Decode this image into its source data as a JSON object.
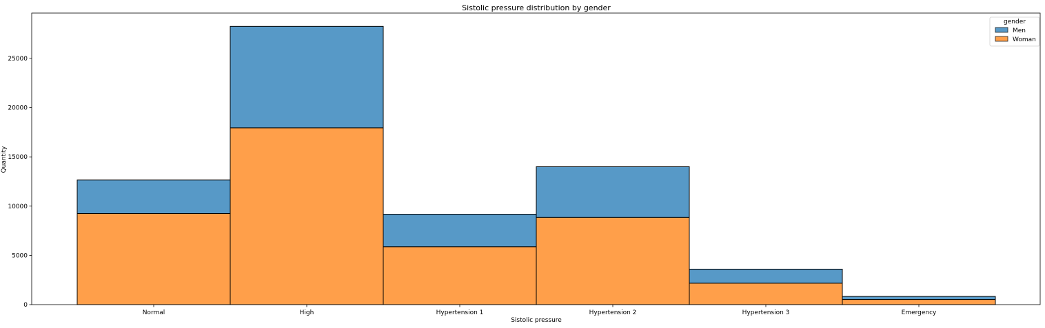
{
  "chart_data": {
    "type": "bar",
    "stacked": true,
    "title": "Sistolic pressure distribution by gender",
    "xlabel": "Sistolic pressure",
    "ylabel": "Quantity",
    "categories": [
      "Normal",
      "High",
      "Hypertension 1",
      "Hypertension 2",
      "Hypertension 3",
      "Emergency"
    ],
    "series": [
      {
        "name": "Woman",
        "values": [
          9250,
          17950,
          5880,
          8850,
          2180,
          520
        ],
        "color": "#ff9f4a"
      },
      {
        "name": "Men",
        "values": [
          3400,
          10300,
          3300,
          5150,
          1420,
          310
        ],
        "color": "#5799c7"
      }
    ],
    "ylim": [
      0,
      29600
    ],
    "yticks": [
      0,
      5000,
      10000,
      15000,
      20000,
      25000
    ],
    "grid": false,
    "legend": {
      "title": "gender",
      "placement": "top-right",
      "entries": [
        "Men",
        "Woman"
      ]
    }
  }
}
